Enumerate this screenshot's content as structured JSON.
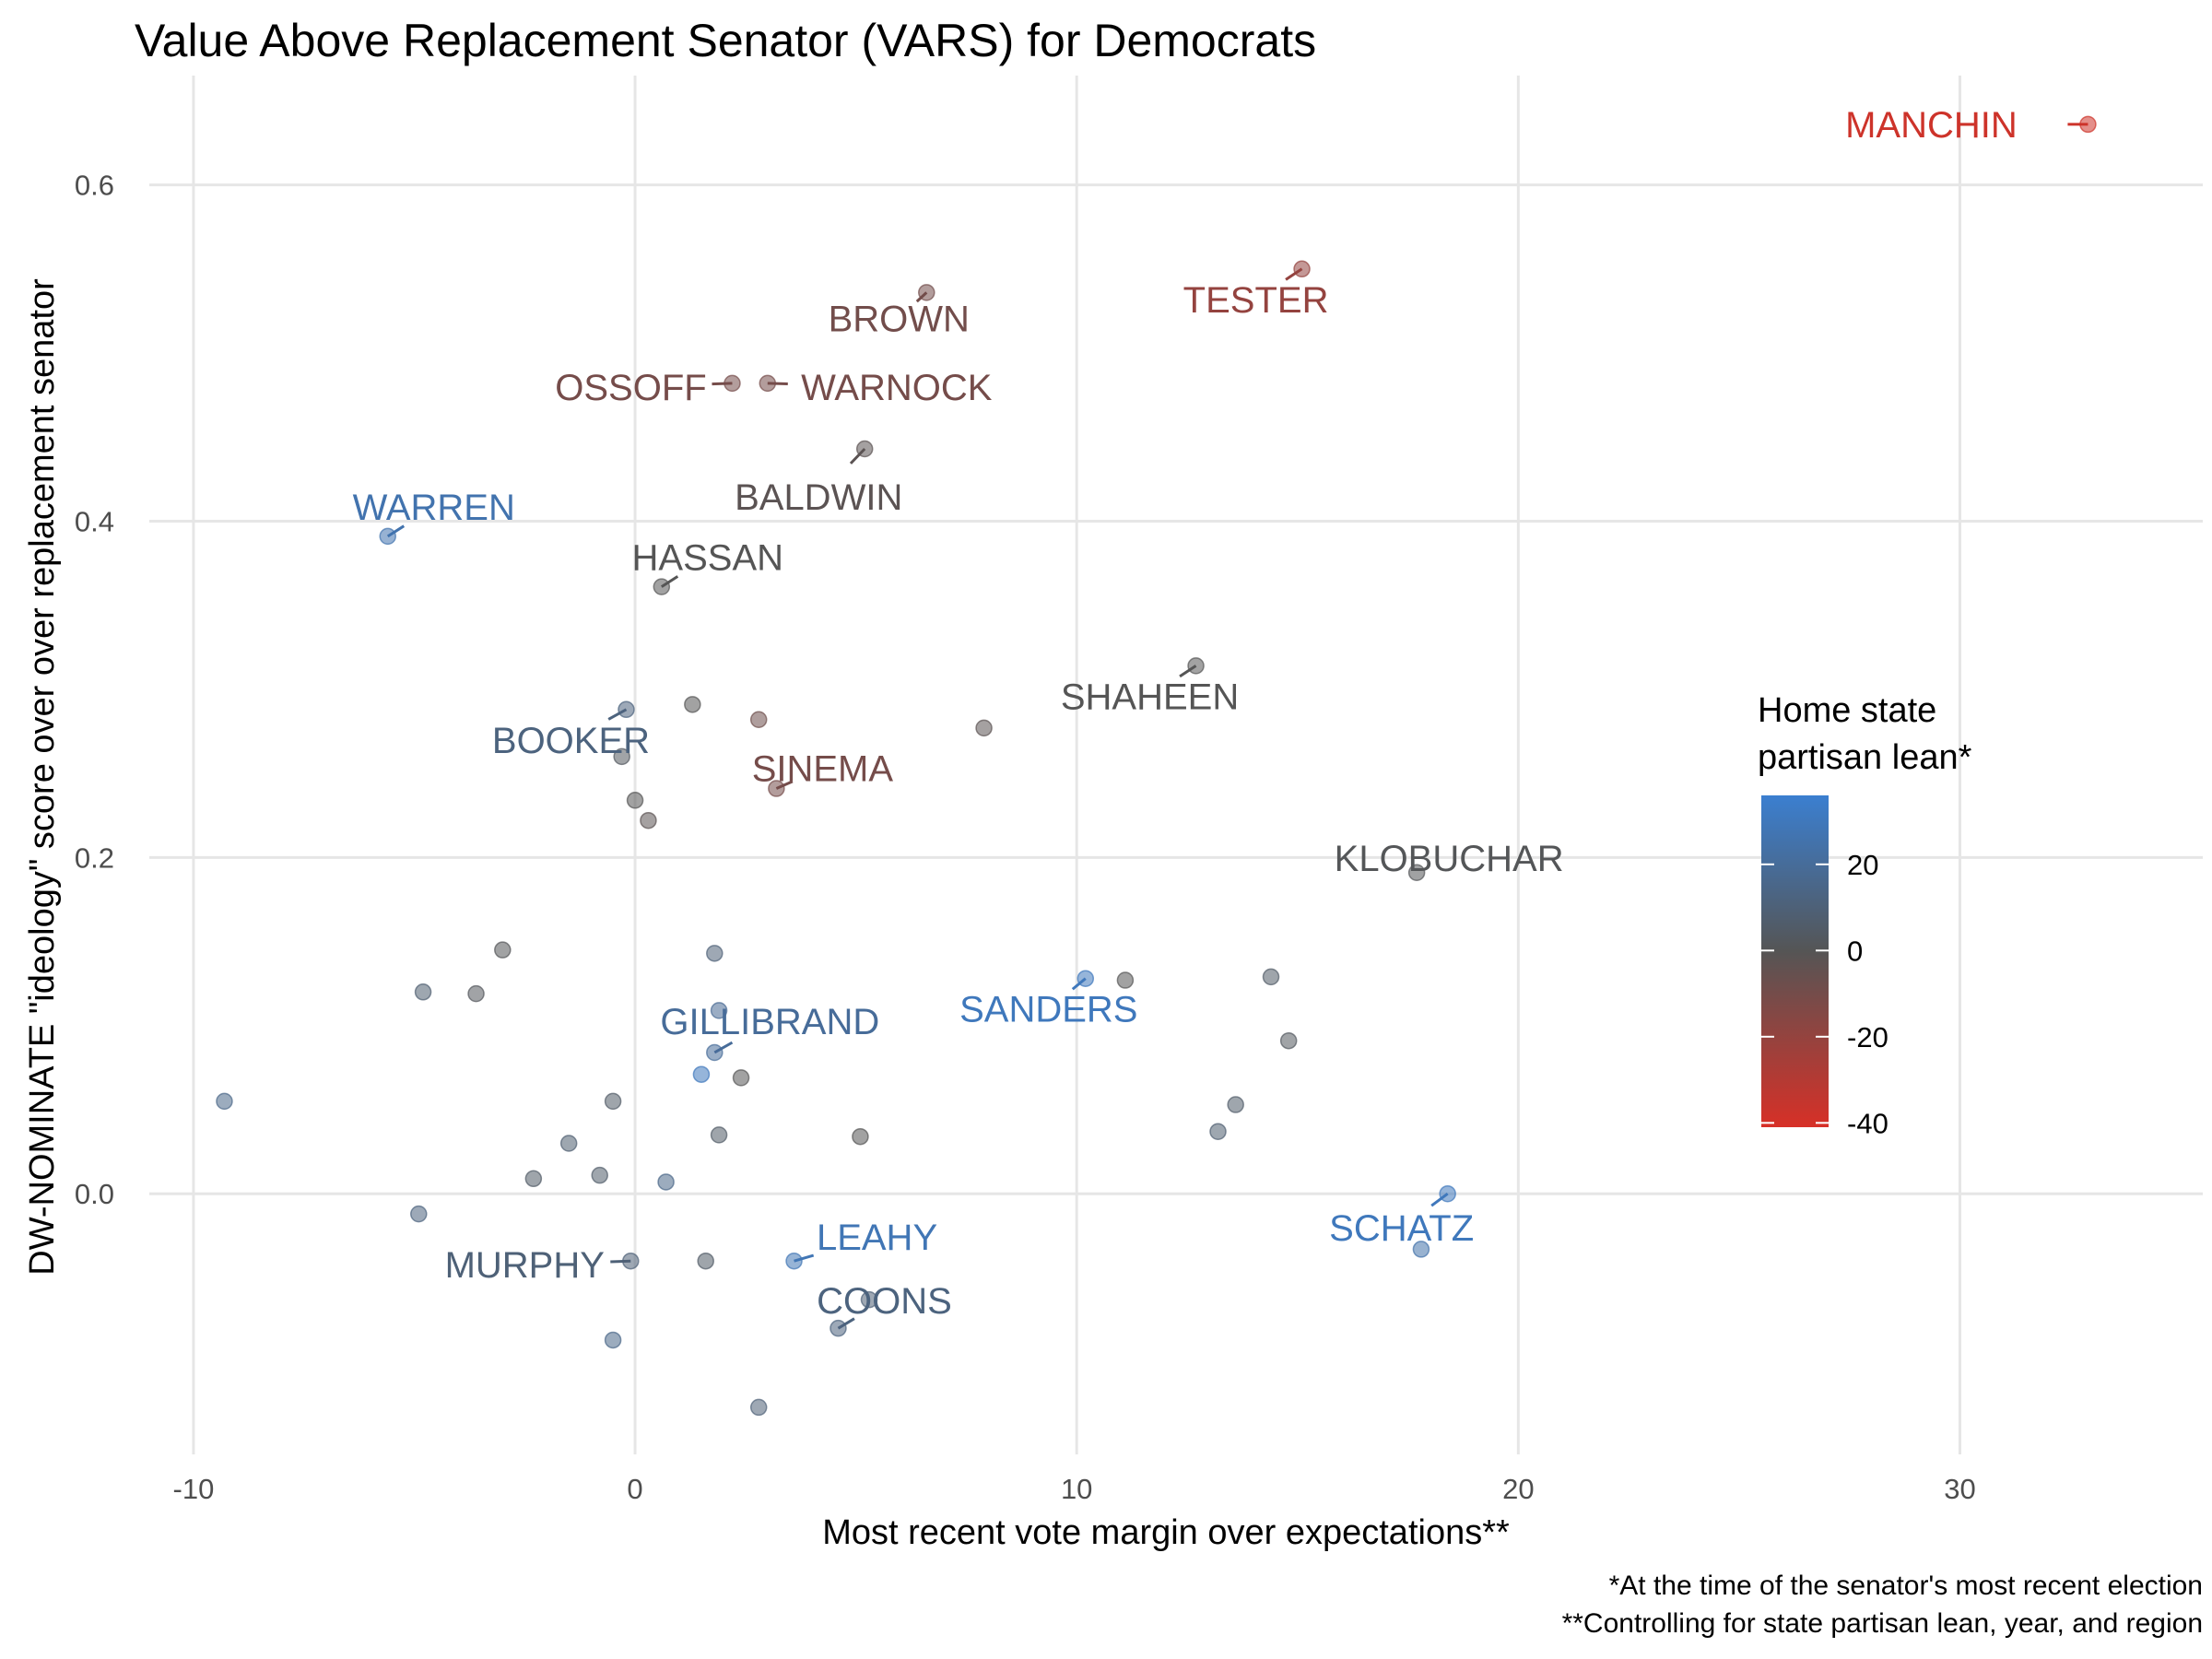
{
  "chart_data": {
    "type": "scatter",
    "title": "Value Above Replacement Senator (VARS) for Democrats",
    "xlabel": "Most recent vote margin over expectations**",
    "ylabel": "DW-NOMINATE \"ideology\" score over over replacement senator",
    "xlim": [
      -11,
      35.5
    ],
    "ylim": [
      -0.155,
      0.665
    ],
    "x_ticks": [
      -10,
      0,
      10,
      20,
      30
    ],
    "x_tick_labels": [
      "-10",
      "0",
      "10",
      "20",
      "30"
    ],
    "y_ticks": [
      0.0,
      0.2,
      0.4,
      0.6
    ],
    "y_tick_labels": [
      "0.0",
      "0.2",
      "0.4",
      "0.6"
    ],
    "grid": true,
    "captions": [
      "*At the time of the senator's most recent election",
      "**Controlling for state partisan lean, year, and region"
    ],
    "legend": {
      "title_lines": [
        "Home state",
        "partisan lean*"
      ],
      "position": "right",
      "min": -41,
      "max": 36,
      "ticks": [
        20,
        0,
        -20,
        -40
      ],
      "tick_labels": [
        "20",
        "0",
        "-20",
        "-40"
      ],
      "color_low": "#d73027",
      "color_mid": "#555555",
      "color_high": "#3b7fd0"
    },
    "points": [
      {
        "x": 32.9,
        "y": 0.636,
        "lean": -38,
        "label": "MANCHIN"
      },
      {
        "x": 15.1,
        "y": 0.55,
        "lean": -20,
        "label": "TESTER"
      },
      {
        "x": 6.6,
        "y": 0.536,
        "lean": -9,
        "label": "BROWN"
      },
      {
        "x": 2.2,
        "y": 0.482,
        "lean": -10,
        "label": "OSSOFF"
      },
      {
        "x": 3.0,
        "y": 0.482,
        "lean": -10,
        "label": "WARNOCK"
      },
      {
        "x": 5.2,
        "y": 0.443,
        "lean": -2,
        "label": "BALDWIN"
      },
      {
        "x": -5.6,
        "y": 0.391,
        "lean": 26,
        "label": "WARREN"
      },
      {
        "x": 0.6,
        "y": 0.361,
        "lean": 0,
        "label": "HASSAN"
      },
      {
        "x": 12.7,
        "y": 0.314,
        "lean": 0,
        "label": "SHAHEEN"
      },
      {
        "x": -0.2,
        "y": 0.288,
        "lean": 12,
        "label": "BOOKER"
      },
      {
        "x": 3.2,
        "y": 0.241,
        "lean": -10,
        "label": "SINEMA"
      },
      {
        "x": 17.7,
        "y": 0.191,
        "lean": 1,
        "label": "KLOBUCHAR"
      },
      {
        "x": 10.2,
        "y": 0.128,
        "lean": 30,
        "label": "SANDERS"
      },
      {
        "x": 1.8,
        "y": 0.084,
        "lean": 20,
        "label": "GILLIBRAND"
      },
      {
        "x": 18.4,
        "y": 0.0,
        "lean": 30,
        "label": "SCHATZ"
      },
      {
        "x": 3.6,
        "y": -0.04,
        "lean": 28,
        "label": "LEAHY"
      },
      {
        "x": -0.1,
        "y": -0.04,
        "lean": 10,
        "label": "MURPHY"
      },
      {
        "x": 4.6,
        "y": -0.08,
        "lean": 12,
        "label": "COONS"
      },
      {
        "x": 1.3,
        "y": 0.291,
        "lean": 0
      },
      {
        "x": -0.3,
        "y": 0.26,
        "lean": 3
      },
      {
        "x": 2.8,
        "y": 0.282,
        "lean": -8
      },
      {
        "x": 7.9,
        "y": 0.277,
        "lean": -2
      },
      {
        "x": 0.0,
        "y": 0.234,
        "lean": 0
      },
      {
        "x": 0.3,
        "y": 0.222,
        "lean": -2
      },
      {
        "x": -3.0,
        "y": 0.145,
        "lean": 1
      },
      {
        "x": -4.8,
        "y": 0.12,
        "lean": 8
      },
      {
        "x": -3.6,
        "y": 0.119,
        "lean": 2
      },
      {
        "x": 1.8,
        "y": 0.143,
        "lean": 10
      },
      {
        "x": 1.9,
        "y": 0.109,
        "lean": 18
      },
      {
        "x": 1.5,
        "y": 0.071,
        "lean": 30
      },
      {
        "x": 2.4,
        "y": 0.069,
        "lean": 0
      },
      {
        "x": 11.1,
        "y": 0.127,
        "lean": 0
      },
      {
        "x": 14.4,
        "y": 0.129,
        "lean": 5
      },
      {
        "x": 14.8,
        "y": 0.091,
        "lean": 3
      },
      {
        "x": 13.6,
        "y": 0.053,
        "lean": 6
      },
      {
        "x": 13.2,
        "y": 0.037,
        "lean": 8
      },
      {
        "x": -9.3,
        "y": 0.055,
        "lean": 15
      },
      {
        "x": -0.5,
        "y": 0.055,
        "lean": 5
      },
      {
        "x": -1.5,
        "y": 0.03,
        "lean": 8
      },
      {
        "x": -0.8,
        "y": 0.011,
        "lean": 6
      },
      {
        "x": -2.3,
        "y": 0.009,
        "lean": 5
      },
      {
        "x": 0.7,
        "y": 0.007,
        "lean": 15
      },
      {
        "x": 1.9,
        "y": 0.035,
        "lean": 5
      },
      {
        "x": 5.1,
        "y": 0.034,
        "lean": 0
      },
      {
        "x": -4.9,
        "y": -0.012,
        "lean": 12
      },
      {
        "x": 1.6,
        "y": -0.04,
        "lean": 5
      },
      {
        "x": 17.8,
        "y": -0.033,
        "lean": 25
      },
      {
        "x": 5.3,
        "y": -0.063,
        "lean": 10
      },
      {
        "x": -0.5,
        "y": -0.087,
        "lean": 15
      },
      {
        "x": 2.8,
        "y": -0.127,
        "lean": 10
      }
    ]
  }
}
